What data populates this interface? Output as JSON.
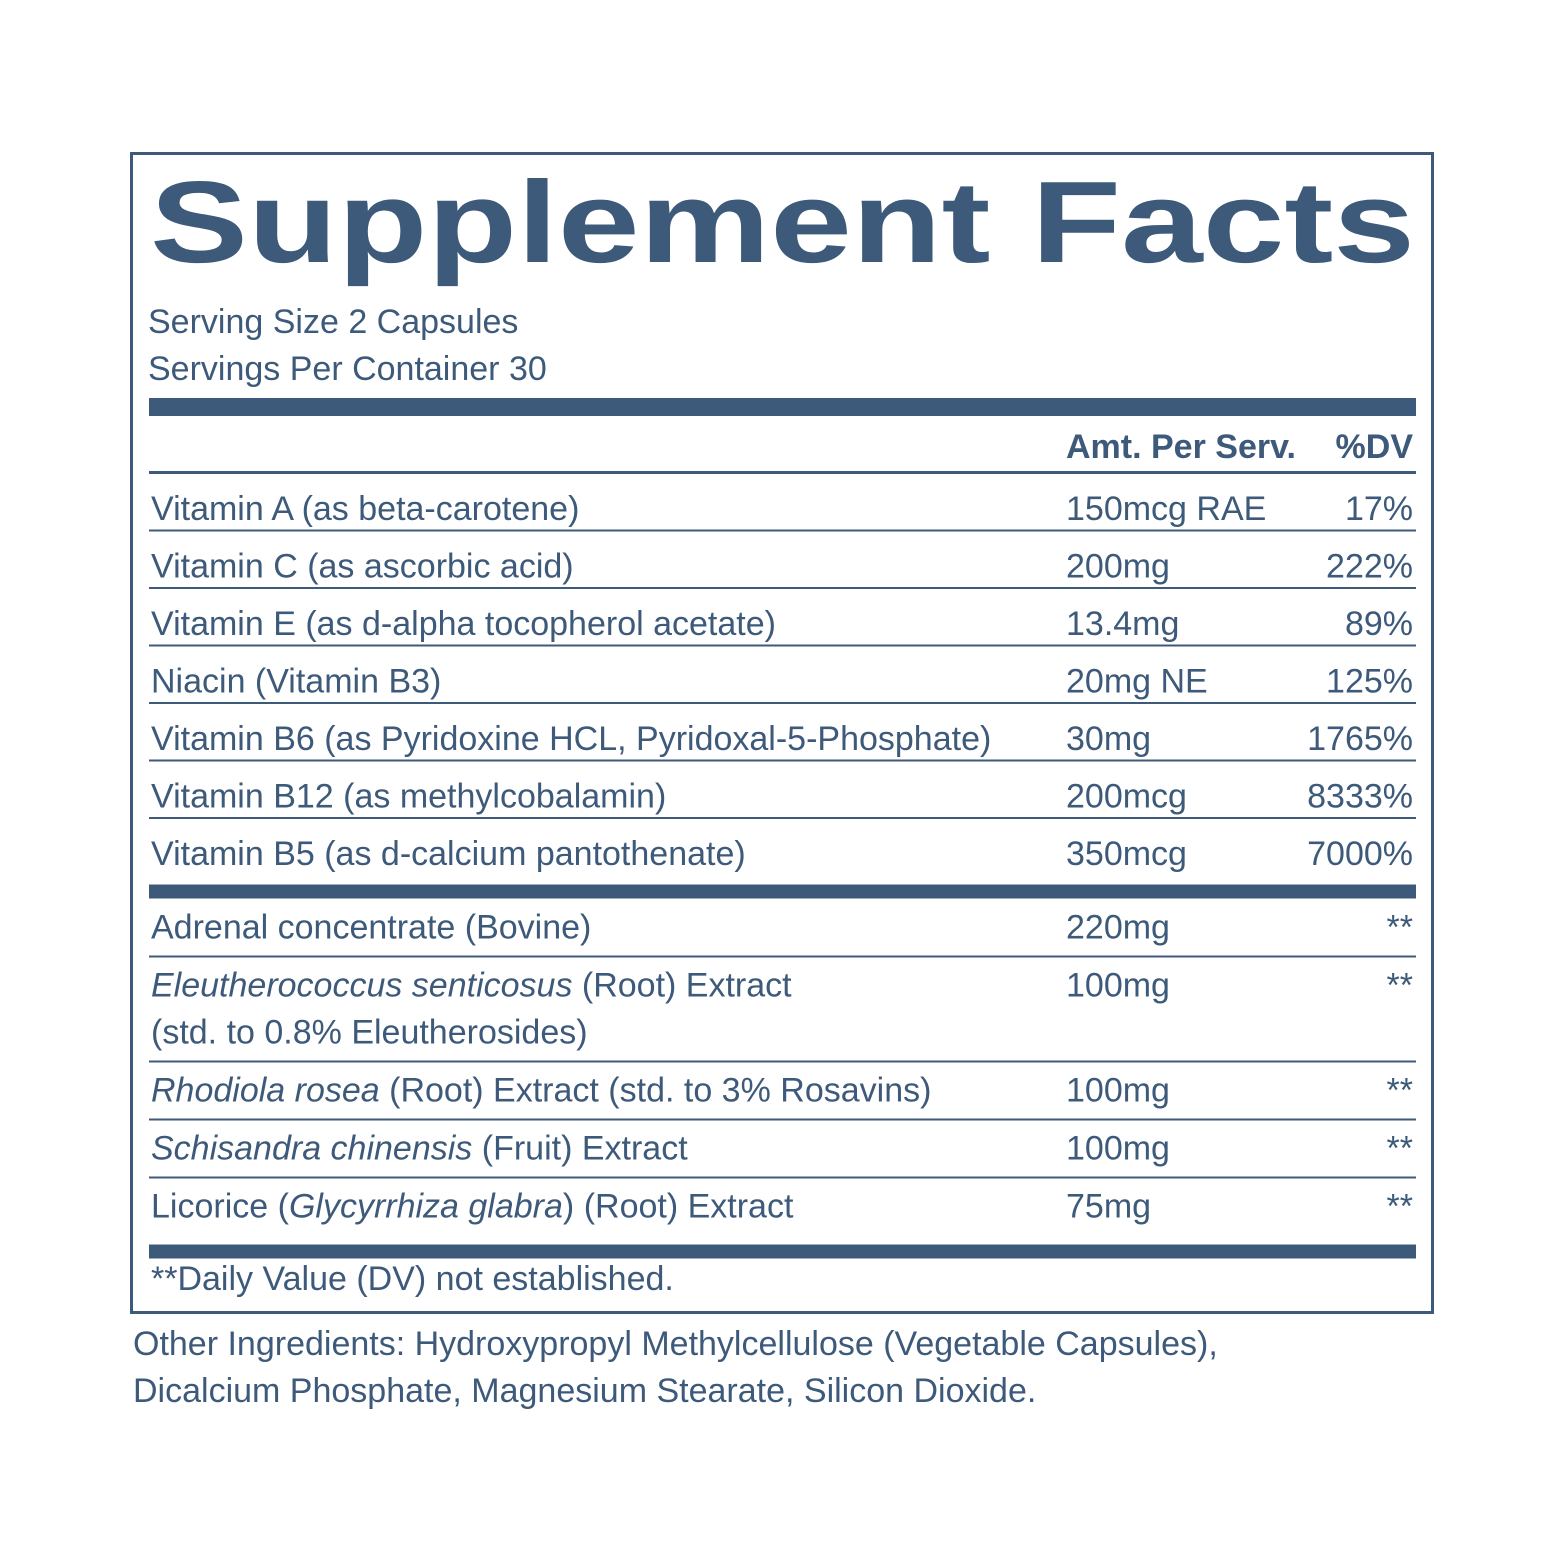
{
  "title": "Supplement Facts",
  "serving_size": "Serving Size 2 Capsules",
  "servings_per_container": "Servings Per Container 30",
  "header": {
    "amount": "Amt. Per Serv.",
    "dv": "%DV"
  },
  "sections": [
    {
      "rows": [
        {
          "lines": [
            [
              {
                "text": "Vitamin A (as beta-carotene)"
              }
            ]
          ],
          "amount": "150mcg RAE",
          "dv": "17%"
        },
        {
          "lines": [
            [
              {
                "text": "Vitamin C (as ascorbic acid)"
              }
            ]
          ],
          "amount": "200mg",
          "dv": "222%"
        },
        {
          "lines": [
            [
              {
                "text": "Vitamin E (as d-alpha tocopherol acetate)"
              }
            ]
          ],
          "amount": "13.4mg",
          "dv": "89%"
        },
        {
          "lines": [
            [
              {
                "text": "Niacin (Vitamin B3)"
              }
            ]
          ],
          "amount": "20mg NE",
          "dv": "125%"
        },
        {
          "lines": [
            [
              {
                "text": "Vitamin B6 (as Pyridoxine HCL, Pyridoxal-5-Phosphate)"
              }
            ]
          ],
          "amount": "30mg",
          "dv": "1765%"
        },
        {
          "lines": [
            [
              {
                "text": "Vitamin B12 (as methylcobalamin)"
              }
            ]
          ],
          "amount": "200mcg",
          "dv": "8333%"
        },
        {
          "lines": [
            [
              {
                "text": "Vitamin B5 (as d-calcium pantothenate)"
              }
            ]
          ],
          "amount": "350mcg",
          "dv": "7000%"
        }
      ]
    },
    {
      "rows": [
        {
          "lines": [
            [
              {
                "text": "Adrenal concentrate (Bovine)"
              }
            ]
          ],
          "amount": "220mg",
          "dv": "**"
        },
        {
          "lines": [
            [
              {
                "text": "Eleutherococcus senticosus",
                "italic": true
              },
              {
                "text": " (Root) Extract"
              }
            ],
            [
              {
                "text": "(std. to 0.8% Eleutherosides)"
              }
            ]
          ],
          "amount": "100mg",
          "dv": "**"
        },
        {
          "lines": [
            [
              {
                "text": "Rhodiola rosea",
                "italic": true
              },
              {
                "text": " (Root) Extract (std. to 3% Rosavins)"
              }
            ]
          ],
          "amount": "100mg",
          "dv": "**"
        },
        {
          "lines": [
            [
              {
                "text": "Schisandra chinensis",
                "italic": true
              },
              {
                "text": " (Fruit) Extract"
              }
            ]
          ],
          "amount": "100mg",
          "dv": "**"
        },
        {
          "lines": [
            [
              {
                "text": "Licorice ("
              },
              {
                "text": "Glycyrrhiza glabra",
                "italic": true
              },
              {
                "text": ") (Root) Extract"
              }
            ]
          ],
          "amount": "75mg",
          "dv": "**"
        }
      ]
    }
  ],
  "footnote": "**Daily Value (DV) not established.",
  "other_ingredients": [
    "Other Ingredients: Hydroxypropyl Methylcellulose (Vegetable Capsules),",
    "Dicalcium Phosphate, Magnesium Stearate, Silicon Dioxide."
  ]
}
